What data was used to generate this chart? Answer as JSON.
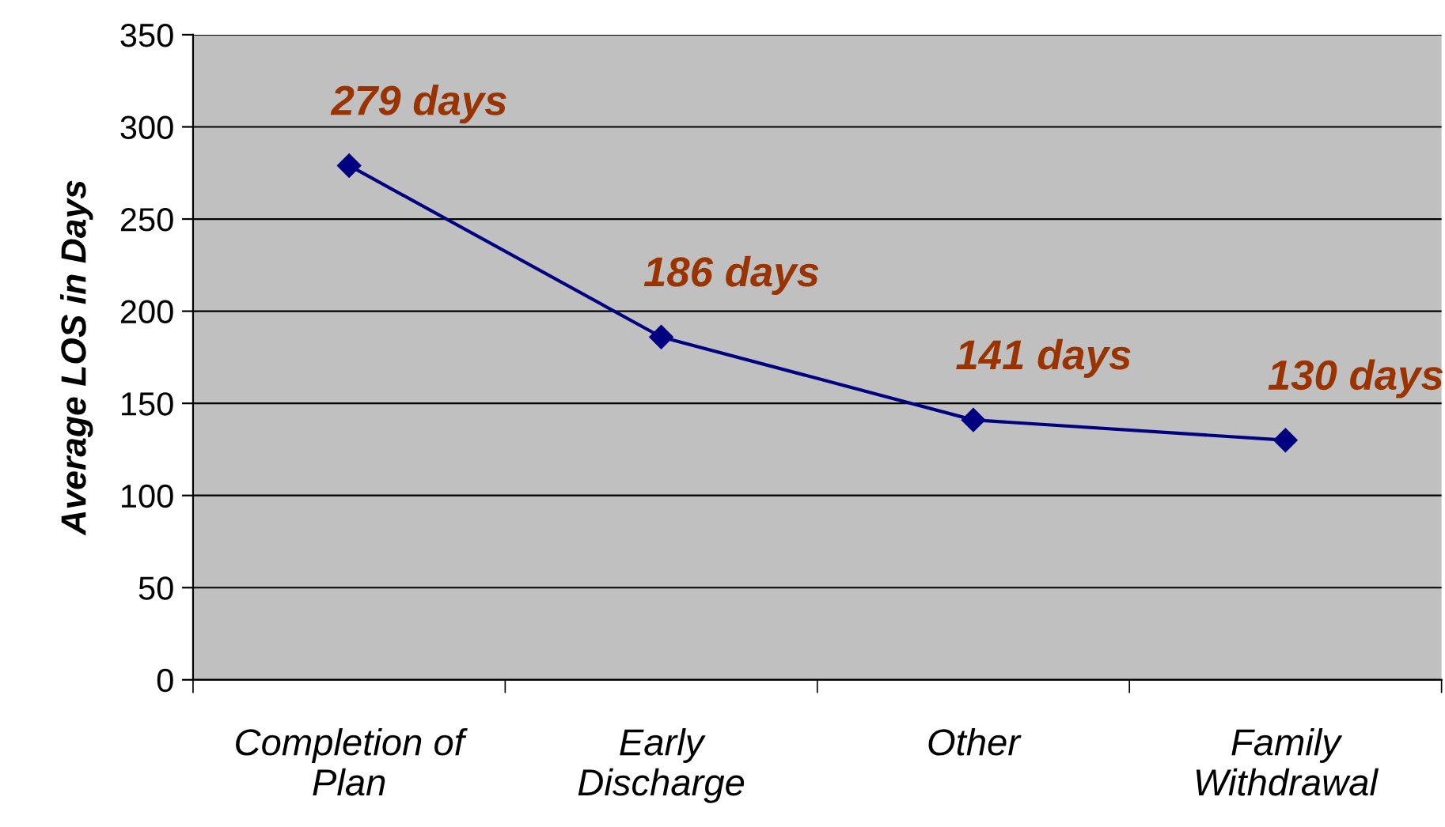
{
  "chart_data": {
    "type": "line",
    "ylabel": "Average LOS in Days",
    "categories": [
      "Completion of\nPlan",
      "Early\nDischarge",
      "Other",
      "Family\nWithdrawal"
    ],
    "values": [
      279,
      186,
      141,
      130
    ],
    "color": "#000080",
    "marker": "diamond",
    "value_labels": [
      "279 days",
      "186 days",
      "141 days",
      "130 days"
    ],
    "ylim": [
      0,
      350
    ],
    "yticks": [
      0,
      50,
      100,
      150,
      200,
      250,
      300,
      350
    ],
    "grid": "y"
  }
}
